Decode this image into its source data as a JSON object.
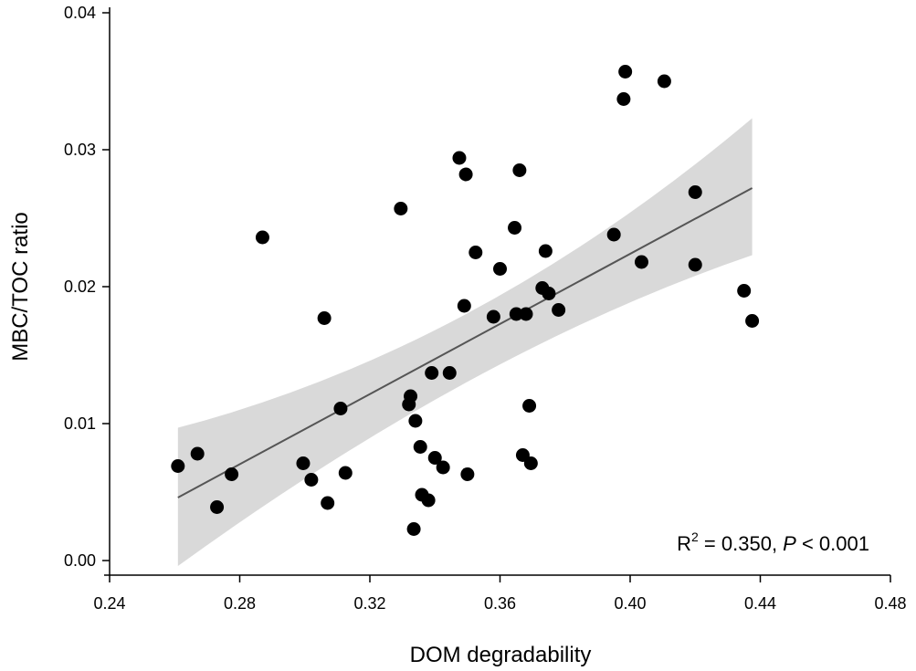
{
  "chart_data": {
    "type": "scatter",
    "xlabel": "DOM degradability",
    "ylabel": "MBC/TOC ratio",
    "xlim": [
      0.24,
      0.48
    ],
    "ylim": [
      0.0,
      0.04
    ],
    "xticks": [
      "0.24",
      "0.28",
      "0.32",
      "0.36",
      "0.40",
      "0.44",
      "0.48"
    ],
    "yticks": [
      "0.00",
      "0.01",
      "0.02",
      "0.03",
      "0.04"
    ],
    "points": [
      [
        0.261,
        0.0069
      ],
      [
        0.267,
        0.0078
      ],
      [
        0.273,
        0.0039
      ],
      [
        0.2775,
        0.0063
      ],
      [
        0.287,
        0.0236
      ],
      [
        0.2995,
        0.0071
      ],
      [
        0.302,
        0.0059
      ],
      [
        0.306,
        0.0177
      ],
      [
        0.307,
        0.0042
      ],
      [
        0.311,
        0.0111
      ],
      [
        0.3125,
        0.0064
      ],
      [
        0.3295,
        0.0257
      ],
      [
        0.332,
        0.0114
      ],
      [
        0.3325,
        0.012
      ],
      [
        0.3335,
        0.0023
      ],
      [
        0.334,
        0.0102
      ],
      [
        0.3355,
        0.0083
      ],
      [
        0.336,
        0.0048
      ],
      [
        0.338,
        0.0044
      ],
      [
        0.339,
        0.0137
      ],
      [
        0.34,
        0.0075
      ],
      [
        0.3425,
        0.0068
      ],
      [
        0.3445,
        0.0137
      ],
      [
        0.3475,
        0.0294
      ],
      [
        0.349,
        0.0186
      ],
      [
        0.3495,
        0.0282
      ],
      [
        0.35,
        0.0063
      ],
      [
        0.3525,
        0.0225
      ],
      [
        0.358,
        0.0178
      ],
      [
        0.36,
        0.0213
      ],
      [
        0.3645,
        0.0243
      ],
      [
        0.365,
        0.018
      ],
      [
        0.366,
        0.0285
      ],
      [
        0.367,
        0.0077
      ],
      [
        0.368,
        0.018
      ],
      [
        0.369,
        0.0113
      ],
      [
        0.3695,
        0.0071
      ],
      [
        0.373,
        0.0199
      ],
      [
        0.374,
        0.0226
      ],
      [
        0.375,
        0.0195
      ],
      [
        0.378,
        0.0183
      ],
      [
        0.395,
        0.0238
      ],
      [
        0.398,
        0.0337
      ],
      [
        0.3985,
        0.0357
      ],
      [
        0.4035,
        0.0218
      ],
      [
        0.4105,
        0.035
      ],
      [
        0.42,
        0.0269
      ],
      [
        0.42,
        0.0216
      ],
      [
        0.435,
        0.0197
      ],
      [
        0.4375,
        0.0175
      ]
    ],
    "regression": {
      "x": [
        0.261,
        0.4375
      ],
      "y": [
        0.0046,
        0.0272
      ],
      "ci_upper": [
        0.0097,
        0.0323
      ],
      "ci_lower": [
        -0.0004,
        0.0223
      ],
      "ci_mid_x": 0.353,
      "ci_mid_upper": 0.0182,
      "ci_mid_lower": 0.0132
    },
    "colors": {
      "points": "#000000",
      "line": "#555555",
      "band": "#d9d9d9",
      "axis": "#000000"
    },
    "annotation": {
      "r_letter": "R",
      "sup": "2",
      "eq_text": " = 0.350, ",
      "p_letter": "P",
      "p_text": " < 0.001"
    }
  }
}
